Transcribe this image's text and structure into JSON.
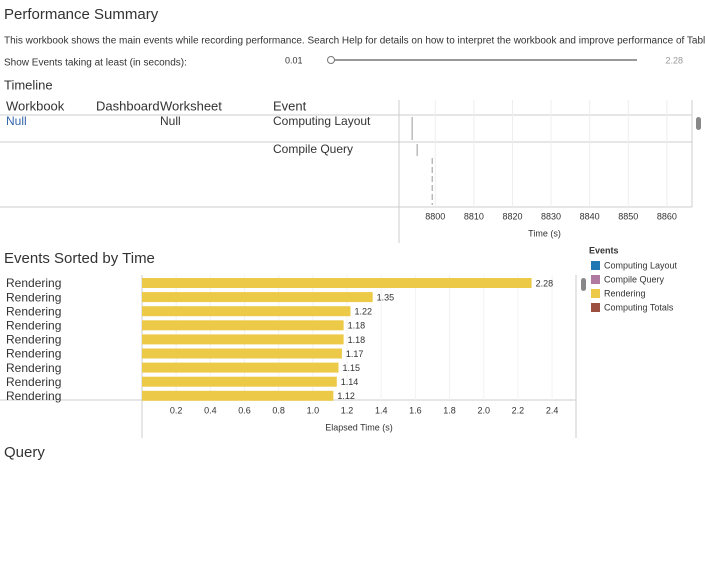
{
  "header": {
    "title": "Performance Summary",
    "description": "This workbook shows the main events while recording performance. Search Help for details on how to interpret the workbook and improve performance of Tableau."
  },
  "filter": {
    "label": "Show Events taking at least (in seconds):",
    "min": 0.01,
    "max": 2.28
  },
  "timeline": {
    "title": "Timeline",
    "columns": [
      "Workbook",
      "Dashboard",
      "Worksheet",
      "Event"
    ],
    "rows": [
      {
        "workbook": "Null",
        "worksheet": "Null",
        "event": "Computing Layout",
        "times": [
          8794
        ]
      },
      {
        "event": "Compile Query",
        "times": [
          8795.3,
          8799.2
        ]
      }
    ],
    "xlim": [
      8790.6,
      8866
    ],
    "xticks": [
      8800,
      8810,
      8820,
      8830,
      8840,
      8850,
      8860
    ],
    "xlabel": "Time (s)",
    "grid": true
  },
  "chart_data": {
    "type": "bar",
    "title": "Events Sorted by Time",
    "categories": [
      "Rendering",
      "Rendering",
      "Rendering",
      "Rendering",
      "Rendering",
      "Rendering",
      "Rendering",
      "Rendering",
      "Rendering"
    ],
    "values": [
      2.28,
      1.35,
      1.22,
      1.18,
      1.18,
      1.17,
      1.15,
      1.14,
      1.12
    ],
    "color": "#edc948",
    "xlim": [
      0,
      2.54
    ],
    "xticks": [
      0.2,
      0.4,
      0.6,
      0.8,
      {
        "value": 1,
        "label": "1.0"
      },
      1.2,
      1.4,
      1.6,
      1.8,
      {
        "value": 2,
        "label": "2.0"
      },
      2.2,
      2.4
    ],
    "xlabel": "Elapsed Time (s)",
    "grid": true
  },
  "legend": {
    "title": "Events",
    "items": [
      {
        "name": "Computing Layout",
        "color": "#1f77b4"
      },
      {
        "name": "Compile Query",
        "color": "#b07aa1"
      },
      {
        "name": "Rendering",
        "color": "#edc948"
      },
      {
        "name": "Computing Totals",
        "color": "#9c4f3f"
      }
    ]
  },
  "query": {
    "title": "Query"
  }
}
